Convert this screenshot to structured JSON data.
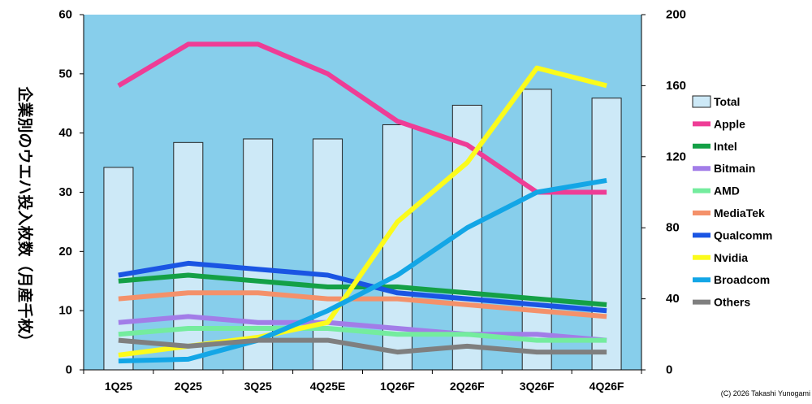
{
  "chart_data": {
    "type": "bar+line",
    "categories": [
      "1Q25",
      "2Q25",
      "3Q25",
      "4Q25E",
      "1Q26F",
      "2Q26F",
      "3Q26F",
      "4Q26F"
    ],
    "ylabel": "企業別のウエハ投入枚数（月産千枚）",
    "y_left": {
      "min": 0,
      "max": 60,
      "step": 10,
      "ticks": [
        "0",
        "10",
        "20",
        "30",
        "40",
        "50",
        "60"
      ]
    },
    "y_right": {
      "min": 0,
      "max": 200,
      "step": 40,
      "ticks": [
        "0",
        "40",
        "80",
        "120",
        "160",
        "200"
      ]
    },
    "bar_series": {
      "name": "Total",
      "axis": "right",
      "color": "#cde9f7",
      "values": [
        114,
        128,
        130,
        130,
        138,
        149,
        158,
        153
      ]
    },
    "series": [
      {
        "name": "Apple",
        "color": "#ee3d96",
        "values": [
          48,
          55,
          55,
          50,
          42,
          38,
          30,
          30
        ]
      },
      {
        "name": "Intel",
        "color": "#14a046",
        "values": [
          15,
          16,
          15,
          14,
          14,
          13,
          12,
          11
        ]
      },
      {
        "name": "Bitmain",
        "color": "#a27de8",
        "values": [
          8,
          9,
          8,
          8,
          7,
          6,
          6,
          5
        ]
      },
      {
        "name": "AMD",
        "color": "#74ec9e",
        "values": [
          6,
          7,
          7,
          7,
          6,
          6,
          5,
          5
        ]
      },
      {
        "name": "MediaTek",
        "color": "#f4916a",
        "values": [
          12,
          13,
          13,
          12,
          12,
          11,
          10,
          9
        ]
      },
      {
        "name": "Qualcomm",
        "color": "#1a55e3",
        "values": [
          16,
          18,
          17,
          16,
          13,
          12,
          11,
          10
        ]
      },
      {
        "name": "Nvidia",
        "color": "#fbfb1c",
        "values": [
          2.5,
          4,
          5.5,
          8,
          25,
          35,
          51,
          48
        ]
      },
      {
        "name": "Broadcom",
        "color": "#13a6e6",
        "values": [
          1.5,
          1.8,
          5,
          10,
          16,
          24,
          30,
          32
        ]
      },
      {
        "name": "Others",
        "color": "#7f7f7f",
        "values": [
          5,
          4,
          5,
          5,
          3,
          4,
          3,
          3
        ]
      }
    ],
    "legend_position": "right",
    "plot_background": "#87ceeb",
    "grid": false
  },
  "copyright": "(C) 2026 Takashi Yunogami"
}
